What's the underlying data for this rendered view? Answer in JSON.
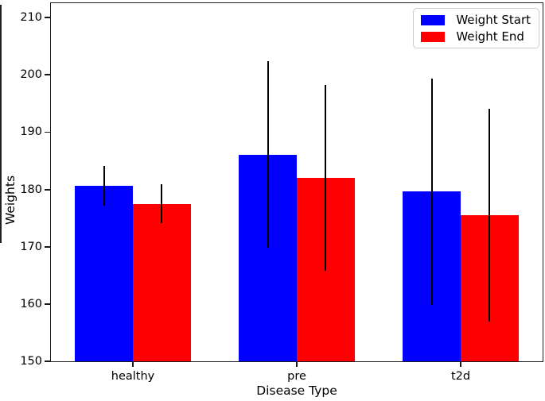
{
  "chart_data": {
    "type": "bar",
    "title": "",
    "xlabel": "Disease Type",
    "ylabel": "Weights",
    "categories": [
      "healthy",
      "pre",
      "t2d"
    ],
    "series": [
      {
        "name": "Weight Start",
        "color": "#0000ff",
        "values": [
          180.6,
          186.1,
          179.6
        ],
        "yerr": [
          3.5,
          16.3,
          19.7
        ]
      },
      {
        "name": "Weight End",
        "color": "#ff0000",
        "values": [
          177.5,
          182.0,
          175.5
        ],
        "yerr": [
          3.4,
          16.2,
          18.6
        ]
      }
    ],
    "ylim": [
      150,
      212.5
    ],
    "yticks": [
      150,
      160,
      170,
      180,
      190,
      200,
      210
    ],
    "grid": false,
    "legend_position": "upper right",
    "bar_width_fraction": 0.353,
    "error_bar_color": "#000000",
    "plot_background": "#ffffff"
  }
}
